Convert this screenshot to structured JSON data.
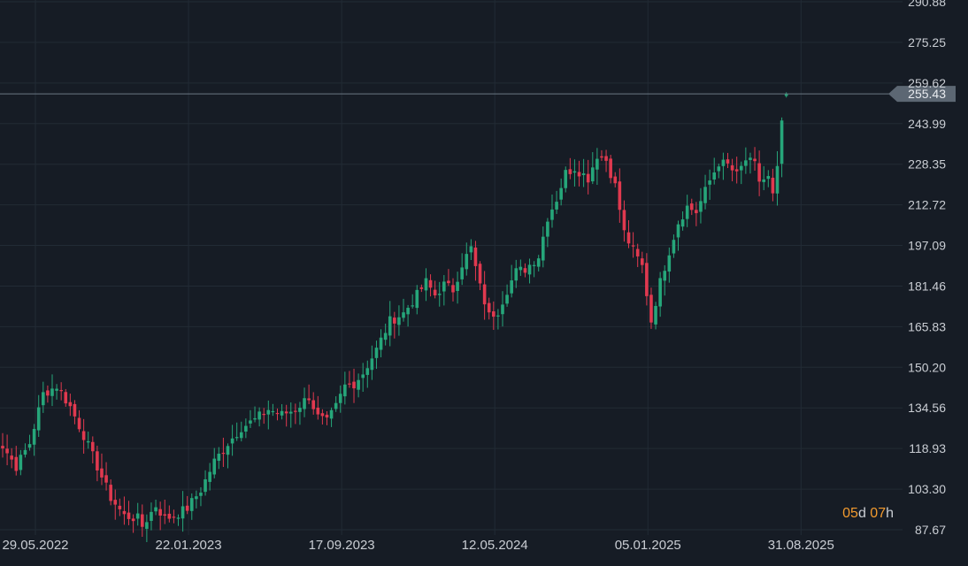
{
  "chart_data": {
    "type": "candlestick",
    "title": "",
    "xlabel": "",
    "ylabel": "",
    "interval": "weekly",
    "ylim": [
      87.67,
      290.88
    ],
    "y_ticks": [
      "290.88",
      "275.25",
      "259.62",
      "243.99",
      "228.35",
      "212.72",
      "197.09",
      "181.46",
      "165.83",
      "150.20",
      "134.56",
      "118.93",
      "103.30",
      "87.67"
    ],
    "x_ticks": [
      {
        "label": "29.05.2022",
        "index": 0
      },
      {
        "label": "22.01.2023",
        "index": 34
      },
      {
        "label": "17.09.2023",
        "index": 68
      },
      {
        "label": "12.05.2024",
        "index": 102
      },
      {
        "label": "05.01.2025",
        "index": 136
      },
      {
        "label": "31.08.2025",
        "index": 170
      }
    ],
    "last_price": "255.43",
    "grid": true,
    "colors": {
      "up": "#26a67a",
      "down": "#e0394f",
      "grid": "#222b35",
      "last_line": "#6b7885",
      "label_bg": "#5c6773"
    },
    "countdown": {
      "days": "05",
      "days_unit": "d",
      "hours": "07",
      "hours_unit": "h"
    },
    "anchors": [
      [
        -3,
        123
      ],
      [
        0,
        120
      ],
      [
        3,
        112
      ],
      [
        6,
        121
      ],
      [
        9,
        140
      ],
      [
        12,
        143
      ],
      [
        15,
        135
      ],
      [
        18,
        124
      ],
      [
        21,
        112
      ],
      [
        24,
        100
      ],
      [
        27,
        93
      ],
      [
        30,
        92
      ],
      [
        31,
        89
      ],
      [
        34,
        97
      ],
      [
        36,
        92
      ],
      [
        38,
        93
      ],
      [
        41,
        96
      ],
      [
        44,
        103
      ],
      [
        47,
        114
      ],
      [
        50,
        121
      ],
      [
        53,
        127
      ],
      [
        56,
        130
      ],
      [
        59,
        134
      ],
      [
        62,
        132
      ],
      [
        65,
        134
      ],
      [
        68,
        139
      ],
      [
        70,
        131
      ],
      [
        72,
        129
      ],
      [
        74,
        135
      ],
      [
        76,
        143
      ],
      [
        78,
        144
      ],
      [
        80,
        148
      ],
      [
        83,
        157
      ],
      [
        86,
        168
      ],
      [
        89,
        171
      ],
      [
        92,
        178
      ],
      [
        94,
        183
      ],
      [
        96,
        178
      ],
      [
        98,
        182
      ],
      [
        100,
        180
      ],
      [
        102,
        190
      ],
      [
        104,
        196
      ],
      [
        106,
        181
      ],
      [
        108,
        170
      ],
      [
        110,
        172
      ],
      [
        112,
        180
      ],
      [
        114,
        187
      ],
      [
        116,
        188
      ],
      [
        119,
        193
      ],
      [
        121,
        208
      ],
      [
        123,
        215
      ],
      [
        125,
        225
      ],
      [
        127,
        227
      ],
      [
        130,
        223
      ],
      [
        132,
        232
      ],
      [
        134,
        230
      ],
      [
        136,
        220
      ],
      [
        138,
        202
      ],
      [
        140,
        195
      ],
      [
        142,
        189
      ],
      [
        144,
        168
      ],
      [
        146,
        183
      ],
      [
        148,
        195
      ],
      [
        150,
        206
      ],
      [
        152,
        212
      ],
      [
        154,
        210
      ],
      [
        157,
        222
      ],
      [
        159,
        229
      ],
      [
        161,
        228
      ],
      [
        163,
        224
      ],
      [
        165,
        230
      ],
      [
        167,
        228
      ],
      [
        168,
        222
      ],
      [
        170,
        223
      ],
      [
        171,
        216
      ],
      [
        172,
        226
      ],
      [
        173,
        245
      ],
      [
        174,
        255.43
      ]
    ]
  }
}
